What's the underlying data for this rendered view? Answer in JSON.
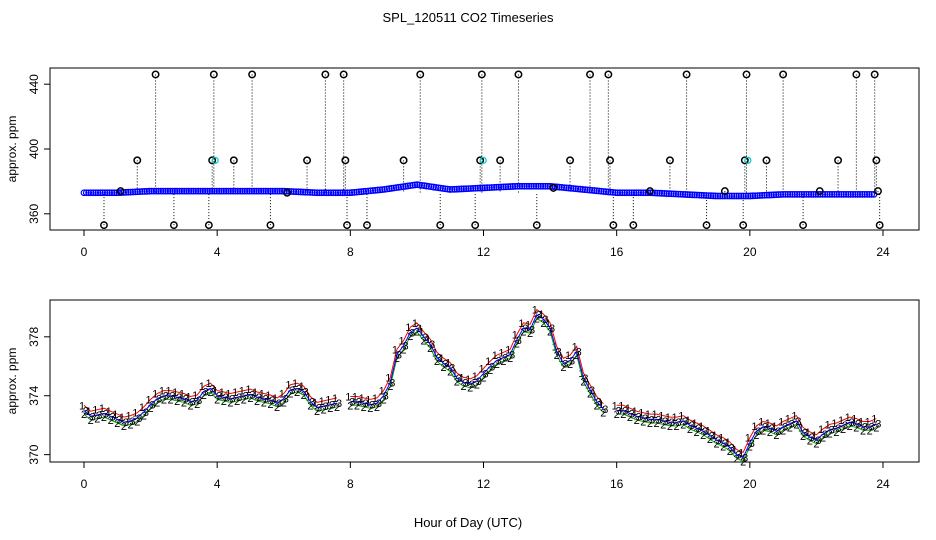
{
  "chart_data": [
    {
      "type": "scatter",
      "title": "SPL_120511  CO2 Timeseries",
      "xlabel": "",
      "ylabel": "approx. ppm",
      "xlim": [
        0,
        24
      ],
      "ylim": [
        350,
        450
      ],
      "xticks": [
        "0",
        "4",
        "8",
        "12",
        "16",
        "20",
        "24"
      ],
      "xtick_values": [
        0,
        4,
        8,
        12,
        16,
        20,
        24
      ],
      "yticks": [
        "360",
        "400",
        "440"
      ],
      "ytick_values": [
        360,
        400,
        440
      ],
      "colors": {
        "series1": "#ff0000",
        "series2": "#00aa00",
        "series3": "#0000ff",
        "series4": "#00cccc",
        "spikes": "#000000"
      },
      "baseline": {
        "x": [
          0.0,
          1.0,
          2.0,
          3.0,
          4.0,
          5.0,
          6.0,
          7.0,
          8.0,
          9.0,
          10.0,
          11.0,
          12.0,
          13.0,
          14.0,
          15.0,
          16.0,
          17.0,
          18.0,
          19.0,
          20.0,
          21.0,
          22.0,
          23.0,
          23.8
        ],
        "y": [
          373,
          373,
          374,
          374,
          374,
          374,
          374,
          373,
          373,
          375,
          378,
          375,
          376,
          377,
          377,
          375,
          373,
          373,
          372,
          371,
          371,
          372,
          372,
          372,
          372
        ]
      },
      "spikes": [
        {
          "x": 0.6,
          "y": 353
        },
        {
          "x": 1.1,
          "y": 374
        },
        {
          "x": 1.6,
          "y": 393
        },
        {
          "x": 2.15,
          "y": 446
        },
        {
          "x": 2.7,
          "y": 353
        },
        {
          "x": 3.75,
          "y": 353
        },
        {
          "x": 3.85,
          "y": 393
        },
        {
          "x": 3.9,
          "y": 446
        },
        {
          "x": 4.5,
          "y": 393
        },
        {
          "x": 5.05,
          "y": 446
        },
        {
          "x": 5.6,
          "y": 353
        },
        {
          "x": 6.1,
          "y": 373
        },
        {
          "x": 6.7,
          "y": 393
        },
        {
          "x": 7.25,
          "y": 446
        },
        {
          "x": 7.8,
          "y": 446
        },
        {
          "x": 7.85,
          "y": 393
        },
        {
          "x": 7.9,
          "y": 353
        },
        {
          "x": 8.5,
          "y": 353
        },
        {
          "x": 9.6,
          "y": 393
        },
        {
          "x": 10.1,
          "y": 446
        },
        {
          "x": 10.7,
          "y": 353
        },
        {
          "x": 11.75,
          "y": 353
        },
        {
          "x": 11.9,
          "y": 393
        },
        {
          "x": 11.95,
          "y": 446
        },
        {
          "x": 12.5,
          "y": 393
        },
        {
          "x": 13.05,
          "y": 446
        },
        {
          "x": 13.6,
          "y": 353
        },
        {
          "x": 14.1,
          "y": 376
        },
        {
          "x": 14.6,
          "y": 393
        },
        {
          "x": 15.2,
          "y": 446
        },
        {
          "x": 15.75,
          "y": 446
        },
        {
          "x": 15.8,
          "y": 393
        },
        {
          "x": 15.9,
          "y": 353
        },
        {
          "x": 16.5,
          "y": 353
        },
        {
          "x": 17.0,
          "y": 374
        },
        {
          "x": 17.6,
          "y": 393
        },
        {
          "x": 18.1,
          "y": 446
        },
        {
          "x": 18.7,
          "y": 353
        },
        {
          "x": 19.25,
          "y": 374
        },
        {
          "x": 19.8,
          "y": 353
        },
        {
          "x": 19.85,
          "y": 393
        },
        {
          "x": 19.9,
          "y": 446
        },
        {
          "x": 20.5,
          "y": 393
        },
        {
          "x": 21.0,
          "y": 446
        },
        {
          "x": 21.6,
          "y": 353
        },
        {
          "x": 22.1,
          "y": 374
        },
        {
          "x": 22.65,
          "y": 393
        },
        {
          "x": 23.2,
          "y": 446
        },
        {
          "x": 23.75,
          "y": 446
        },
        {
          "x": 23.8,
          "y": 393
        },
        {
          "x": 23.85,
          "y": 374
        },
        {
          "x": 23.9,
          "y": 353
        }
      ]
    },
    {
      "type": "scatter",
      "title": "",
      "xlabel": "Hour of Day (UTC)",
      "ylabel": "approx. ppm",
      "xlim": [
        -1,
        25
      ],
      "ylim": [
        369.5,
        380.5
      ],
      "xticks": [
        "0",
        "4",
        "8",
        "12",
        "16",
        "20",
        "24"
      ],
      "xtick_values": [
        0,
        4,
        8,
        12,
        16,
        20,
        24
      ],
      "yticks": [
        "370",
        "374",
        "378"
      ],
      "ytick_values": [
        370,
        374,
        378
      ],
      "series": [
        {
          "name": "1",
          "color": "#ff0000",
          "offset": 0.35
        },
        {
          "name": "2",
          "color": "#00aa00",
          "offset": -0.25
        },
        {
          "name": "3",
          "color": "#0000ff",
          "offset": 0.0
        }
      ],
      "x": [
        0.0,
        0.2,
        0.4,
        0.6,
        0.8,
        1.0,
        1.2,
        1.4,
        1.6,
        1.8,
        2.0,
        2.2,
        2.4,
        2.6,
        2.8,
        3.0,
        3.2,
        3.4,
        3.6,
        3.8,
        4.0,
        4.2,
        4.4,
        4.6,
        4.8,
        5.0,
        5.2,
        5.4,
        5.6,
        5.8,
        6.0,
        6.2,
        6.4,
        6.6,
        6.8,
        7.0,
        7.2,
        7.4,
        7.6,
        7.8,
        8.0,
        8.2,
        8.4,
        8.6,
        8.8,
        9.0,
        9.2,
        9.4,
        9.6,
        9.8,
        10.0,
        10.2,
        10.4,
        10.6,
        10.8,
        11.0,
        11.2,
        11.4,
        11.6,
        11.8,
        12.0,
        12.2,
        12.4,
        12.6,
        12.8,
        13.0,
        13.2,
        13.4,
        13.6,
        13.8,
        14.0,
        14.2,
        14.4,
        14.6,
        14.8,
        15.0,
        15.2,
        15.4,
        15.6,
        15.8,
        16.0,
        16.2,
        16.4,
        16.6,
        16.8,
        17.0,
        17.2,
        17.4,
        17.6,
        17.8,
        18.0,
        18.2,
        18.4,
        18.6,
        18.8,
        19.0,
        19.2,
        19.4,
        19.6,
        19.8,
        20.0,
        20.2,
        20.4,
        20.6,
        20.8,
        21.0,
        21.2,
        21.4,
        21.6,
        21.8,
        22.0,
        22.2,
        22.4,
        22.6,
        22.8,
        23.0,
        23.2,
        23.4,
        23.6,
        23.8
      ],
      "values": [
        373.0,
        372.6,
        372.7,
        372.8,
        372.6,
        372.4,
        372.2,
        372.3,
        372.5,
        372.9,
        373.4,
        373.8,
        374.0,
        374.0,
        373.9,
        373.8,
        373.6,
        373.7,
        374.3,
        374.5,
        374.0,
        373.9,
        373.8,
        373.9,
        374.0,
        374.1,
        373.9,
        373.8,
        373.7,
        373.5,
        373.8,
        374.4,
        374.5,
        374.3,
        373.6,
        373.2,
        373.3,
        373.4,
        373.5,
        null,
        373.6,
        373.6,
        373.5,
        373.4,
        373.5,
        374.0,
        374.9,
        376.8,
        377.4,
        378.3,
        378.6,
        378.0,
        377.5,
        376.6,
        376.2,
        375.9,
        375.2,
        374.9,
        374.8,
        375.0,
        375.5,
        376.0,
        376.4,
        376.6,
        376.8,
        377.8,
        378.6,
        378.5,
        379.5,
        379.2,
        378.6,
        377.0,
        376.2,
        376.4,
        377.0,
        375.2,
        374.4,
        373.6,
        373.1,
        null,
        373.0,
        373.0,
        372.8,
        372.6,
        372.5,
        372.4,
        372.4,
        372.3,
        372.2,
        372.2,
        372.3,
        372.0,
        371.8,
        371.6,
        371.3,
        371.0,
        370.8,
        370.5,
        370.0,
        369.8,
        370.8,
        371.6,
        371.9,
        371.8,
        371.6,
        371.9,
        372.1,
        372.3,
        371.5,
        371.2,
        371.0,
        371.4,
        371.7,
        371.8,
        372.0,
        372.2,
        372.1,
        371.9,
        371.9,
        372.1
      ]
    }
  ]
}
